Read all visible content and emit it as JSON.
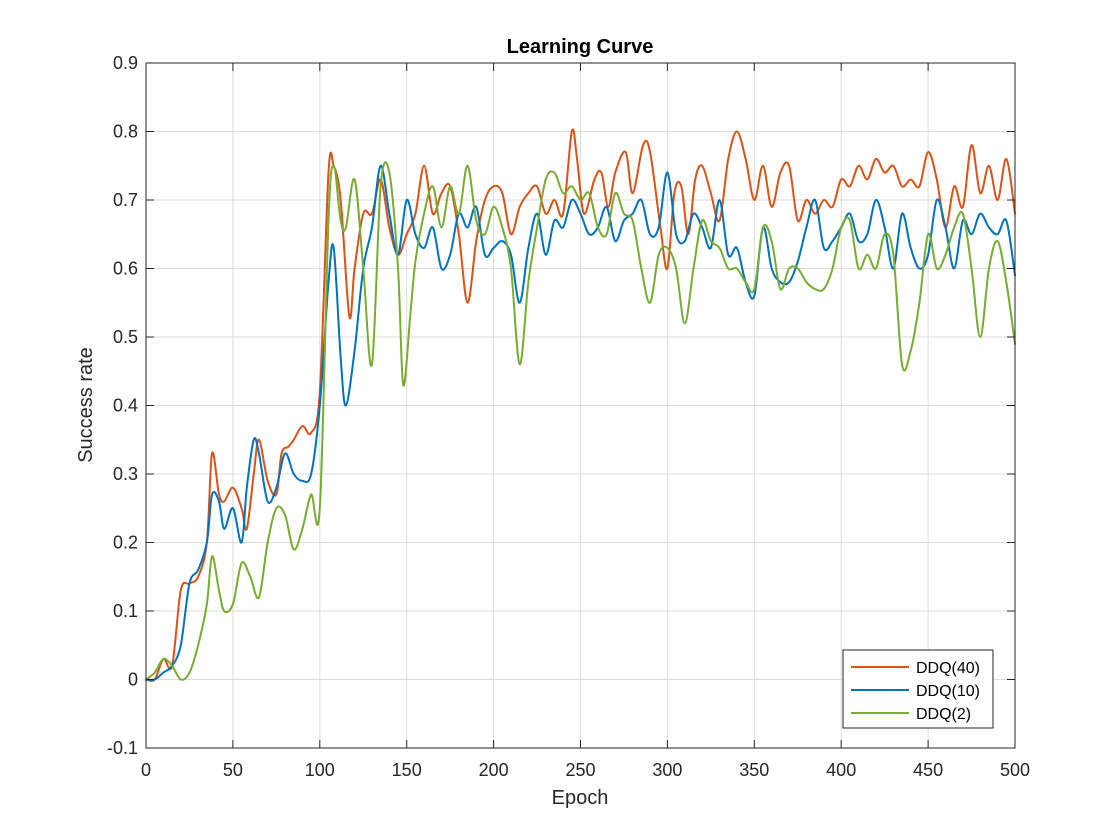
{
  "chart_data": {
    "type": "line",
    "title": "Learning Curve",
    "xlabel": "Epoch",
    "ylabel": "Success rate",
    "xlim": [
      0,
      500
    ],
    "ylim": [
      -0.1,
      0.9
    ],
    "xticks": [
      0,
      50,
      100,
      150,
      200,
      250,
      300,
      350,
      400,
      450,
      500
    ],
    "yticks": [
      -0.1,
      0,
      0.1,
      0.2,
      0.3,
      0.4,
      0.5,
      0.6,
      0.7,
      0.8,
      0.9
    ],
    "xtick_labels": [
      "0",
      "50",
      "100",
      "150",
      "200",
      "250",
      "300",
      "350",
      "400",
      "450",
      "500"
    ],
    "ytick_labels": [
      "-0.1",
      "0",
      "0.1",
      "0.2",
      "0.3",
      "0.4",
      "0.5",
      "0.6",
      "0.7",
      "0.8",
      "0.9"
    ],
    "grid": true,
    "legend_position": "bottom-right",
    "series": [
      {
        "name": "DDQ(40)",
        "color": "#D95319",
        "x": [
          0,
          5,
          10,
          15,
          20,
          25,
          30,
          35,
          38,
          42,
          45,
          50,
          55,
          58,
          62,
          65,
          70,
          75,
          78,
          82,
          85,
          90,
          95,
          100,
          105,
          108,
          112,
          117,
          120,
          125,
          130,
          135,
          140,
          145,
          150,
          155,
          160,
          165,
          170,
          175,
          180,
          185,
          190,
          195,
          200,
          205,
          210,
          215,
          220,
          225,
          230,
          235,
          240,
          245,
          248,
          252,
          258,
          262,
          266,
          270,
          276,
          280,
          286,
          290,
          296,
          300,
          304,
          308,
          312,
          316,
          320,
          325,
          330,
          335,
          340,
          345,
          350,
          355,
          360,
          365,
          370,
          375,
          380,
          385,
          390,
          395,
          400,
          405,
          410,
          415,
          420,
          425,
          430,
          435,
          440,
          445,
          450,
          455,
          460,
          465,
          470,
          475,
          480,
          485,
          490,
          495,
          500
        ],
        "y": [
          0,
          0,
          0.03,
          0.02,
          0.13,
          0.14,
          0.15,
          0.2,
          0.33,
          0.27,
          0.26,
          0.28,
          0.25,
          0.22,
          0.3,
          0.35,
          0.29,
          0.27,
          0.33,
          0.34,
          0.35,
          0.37,
          0.36,
          0.42,
          0.74,
          0.75,
          0.7,
          0.53,
          0.6,
          0.68,
          0.68,
          0.73,
          0.66,
          0.62,
          0.65,
          0.68,
          0.75,
          0.68,
          0.71,
          0.72,
          0.65,
          0.55,
          0.64,
          0.7,
          0.72,
          0.71,
          0.65,
          0.69,
          0.71,
          0.72,
          0.68,
          0.7,
          0.68,
          0.8,
          0.76,
          0.68,
          0.73,
          0.74,
          0.69,
          0.74,
          0.77,
          0.71,
          0.78,
          0.77,
          0.66,
          0.6,
          0.71,
          0.72,
          0.65,
          0.73,
          0.75,
          0.71,
          0.67,
          0.76,
          0.8,
          0.76,
          0.7,
          0.75,
          0.69,
          0.74,
          0.75,
          0.67,
          0.7,
          0.68,
          0.7,
          0.69,
          0.73,
          0.72,
          0.75,
          0.73,
          0.76,
          0.74,
          0.75,
          0.72,
          0.73,
          0.72,
          0.77,
          0.73,
          0.66,
          0.72,
          0.69,
          0.78,
          0.71,
          0.75,
          0.7,
          0.76,
          0.68
        ]
      },
      {
        "name": "DDQ(10)",
        "color": "#0072BD",
        "x": [
          0,
          5,
          10,
          15,
          20,
          25,
          30,
          35,
          38,
          42,
          45,
          50,
          55,
          58,
          62,
          65,
          70,
          75,
          80,
          85,
          90,
          95,
          100,
          105,
          108,
          112,
          115,
          120,
          125,
          130,
          135,
          140,
          145,
          150,
          155,
          160,
          165,
          170,
          175,
          180,
          185,
          190,
          195,
          200,
          205,
          210,
          215,
          220,
          225,
          230,
          235,
          240,
          245,
          250,
          255,
          260,
          265,
          270,
          275,
          280,
          285,
          290,
          295,
          300,
          305,
          310,
          315,
          320,
          325,
          330,
          335,
          340,
          345,
          350,
          355,
          360,
          365,
          370,
          375,
          380,
          385,
          390,
          395,
          400,
          405,
          410,
          415,
          420,
          425,
          430,
          435,
          440,
          445,
          450,
          455,
          460,
          465,
          470,
          475,
          480,
          485,
          490,
          495,
          500
        ],
        "y": [
          0,
          0,
          0.01,
          0.02,
          0.05,
          0.14,
          0.16,
          0.2,
          0.27,
          0.26,
          0.22,
          0.25,
          0.2,
          0.28,
          0.35,
          0.33,
          0.26,
          0.28,
          0.33,
          0.3,
          0.29,
          0.3,
          0.4,
          0.58,
          0.63,
          0.47,
          0.4,
          0.48,
          0.6,
          0.66,
          0.75,
          0.68,
          0.62,
          0.7,
          0.65,
          0.63,
          0.66,
          0.6,
          0.62,
          0.68,
          0.66,
          0.69,
          0.62,
          0.63,
          0.64,
          0.62,
          0.55,
          0.63,
          0.68,
          0.62,
          0.67,
          0.66,
          0.7,
          0.68,
          0.65,
          0.66,
          0.69,
          0.64,
          0.67,
          0.68,
          0.7,
          0.65,
          0.66,
          0.74,
          0.65,
          0.64,
          0.68,
          0.66,
          0.63,
          0.7,
          0.62,
          0.63,
          0.58,
          0.56,
          0.66,
          0.6,
          0.58,
          0.58,
          0.61,
          0.66,
          0.7,
          0.63,
          0.64,
          0.66,
          0.68,
          0.64,
          0.65,
          0.7,
          0.66,
          0.6,
          0.68,
          0.63,
          0.6,
          0.62,
          0.7,
          0.66,
          0.6,
          0.67,
          0.65,
          0.68,
          0.66,
          0.65,
          0.67,
          0.59
        ]
      },
      {
        "name": "DDQ(2)",
        "color": "#77AC30",
        "x": [
          0,
          5,
          10,
          15,
          20,
          25,
          30,
          35,
          38,
          42,
          45,
          50,
          55,
          60,
          65,
          70,
          75,
          80,
          85,
          90,
          95,
          100,
          105,
          108,
          112,
          115,
          120,
          125,
          130,
          135,
          140,
          145,
          148,
          152,
          155,
          160,
          165,
          170,
          175,
          180,
          185,
          190,
          195,
          200,
          205,
          210,
          215,
          220,
          225,
          230,
          235,
          240,
          245,
          250,
          255,
          260,
          265,
          270,
          275,
          280,
          285,
          290,
          295,
          300,
          305,
          310,
          315,
          320,
          325,
          330,
          335,
          340,
          345,
          350,
          355,
          360,
          365,
          370,
          375,
          380,
          385,
          390,
          395,
          400,
          405,
          410,
          415,
          420,
          425,
          430,
          435,
          440,
          445,
          450,
          455,
          460,
          465,
          470,
          475,
          480,
          485,
          490,
          495,
          500
        ],
        "y": [
          0,
          0.01,
          0.03,
          0.02,
          0,
          0.01,
          0.05,
          0.11,
          0.18,
          0.13,
          0.1,
          0.11,
          0.17,
          0.15,
          0.12,
          0.2,
          0.25,
          0.24,
          0.19,
          0.22,
          0.27,
          0.25,
          0.67,
          0.75,
          0.67,
          0.66,
          0.73,
          0.6,
          0.46,
          0.72,
          0.74,
          0.6,
          0.43,
          0.53,
          0.61,
          0.68,
          0.72,
          0.66,
          0.72,
          0.68,
          0.75,
          0.67,
          0.65,
          0.69,
          0.66,
          0.6,
          0.46,
          0.58,
          0.66,
          0.73,
          0.74,
          0.71,
          0.72,
          0.7,
          0.71,
          0.66,
          0.65,
          0.71,
          0.68,
          0.67,
          0.6,
          0.55,
          0.62,
          0.63,
          0.6,
          0.52,
          0.6,
          0.67,
          0.64,
          0.63,
          0.6,
          0.6,
          0.58,
          0.57,
          0.66,
          0.64,
          0.57,
          0.6,
          0.6,
          0.58,
          0.57,
          0.57,
          0.6,
          0.66,
          0.67,
          0.6,
          0.62,
          0.6,
          0.65,
          0.62,
          0.46,
          0.48,
          0.55,
          0.65,
          0.6,
          0.62,
          0.66,
          0.68,
          0.6,
          0.5,
          0.6,
          0.64,
          0.58,
          0.49
        ]
      }
    ]
  }
}
